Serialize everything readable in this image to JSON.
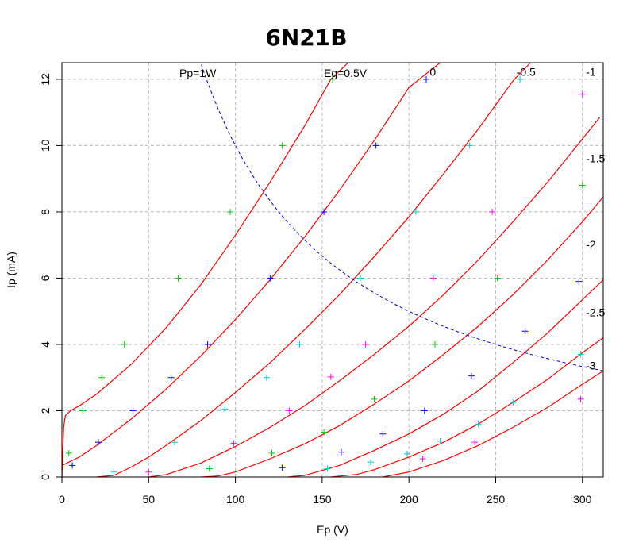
{
  "chart_data": {
    "type": "line",
    "title": "6N21B",
    "xlabel": "Ep (V)",
    "ylabel": "Ip (mA)",
    "xlim": [
      0,
      312
    ],
    "ylim": [
      0,
      12.5
    ],
    "xticks": [
      0,
      50,
      100,
      150,
      200,
      250,
      300
    ],
    "yticks": [
      0,
      2,
      4,
      6,
      8,
      10,
      12
    ],
    "grid": true,
    "annotations": {
      "power_label": "Pp=1W",
      "grid_voltage_label": "Eg=0.5V"
    },
    "power_limit": {
      "watts": 1,
      "color": "#0000cc",
      "style": "dashed"
    },
    "curve_color": "#ff0000",
    "series": [
      {
        "name": "0.5",
        "label": "",
        "color": "#ff0000",
        "x": [
          0,
          1,
          2,
          5,
          10,
          20,
          40,
          60,
          80,
          100,
          120,
          140,
          155,
          165
        ],
        "y": [
          0,
          1.5,
          1.85,
          2.0,
          2.15,
          2.5,
          3.4,
          4.5,
          5.8,
          7.3,
          8.9,
          10.6,
          12.0,
          12.5
        ]
      },
      {
        "name": "0",
        "label": "0",
        "color": "#ff0000",
        "x": [
          0,
          10,
          20,
          40,
          60,
          80,
          100,
          120,
          140,
          160,
          180,
          200,
          218
        ],
        "y": [
          0.35,
          0.6,
          0.95,
          1.75,
          2.65,
          3.65,
          4.75,
          5.95,
          7.25,
          8.65,
          10.15,
          11.75,
          12.5
        ]
      },
      {
        "name": "-0.5",
        "label": "-0.5",
        "color": "#ff0000",
        "x": [
          20,
          30,
          40,
          50,
          60,
          80,
          100,
          120,
          140,
          160,
          180,
          200,
          220,
          240,
          260,
          270
        ],
        "y": [
          0,
          0.05,
          0.3,
          0.6,
          0.95,
          1.7,
          2.55,
          3.45,
          4.45,
          5.5,
          6.65,
          7.85,
          9.15,
          10.5,
          11.95,
          12.5
        ]
      },
      {
        "name": "-1",
        "label": "-1",
        "color": "#ff0000",
        "x": [
          50,
          60,
          80,
          100,
          120,
          140,
          160,
          180,
          200,
          220,
          240,
          260,
          280,
          300,
          310
        ],
        "y": [
          0,
          0.07,
          0.42,
          0.92,
          1.5,
          2.15,
          2.9,
          3.7,
          4.55,
          5.5,
          6.55,
          7.7,
          8.9,
          10.2,
          10.85
        ]
      },
      {
        "name": "-1.5",
        "label": "-1.5",
        "color": "#ff0000",
        "x": [
          80,
          90,
          100,
          120,
          140,
          160,
          180,
          200,
          220,
          240,
          260,
          280,
          300,
          312
        ],
        "y": [
          0,
          0.03,
          0.15,
          0.55,
          1.0,
          1.55,
          2.2,
          2.9,
          3.7,
          4.55,
          5.5,
          6.55,
          7.7,
          8.45
        ]
      },
      {
        "name": "-2",
        "label": "-2",
        "color": "#ff0000",
        "x": [
          130,
          140,
          160,
          180,
          200,
          220,
          240,
          260,
          280,
          300,
          312
        ],
        "y": [
          0,
          0.05,
          0.35,
          0.8,
          1.3,
          1.9,
          2.6,
          3.45,
          4.35,
          5.35,
          5.95
        ]
      },
      {
        "name": "-2.5",
        "label": "-2.5",
        "color": "#ff0000",
        "x": [
          155,
          170,
          180,
          200,
          220,
          240,
          260,
          280,
          300,
          312
        ],
        "y": [
          0,
          0.08,
          0.22,
          0.6,
          1.05,
          1.6,
          2.25,
          2.95,
          3.75,
          4.2
        ]
      },
      {
        "name": "-3",
        "label": "-3",
        "color": "#ff0000",
        "x": [
          185,
          200,
          220,
          240,
          260,
          280,
          300,
          312
        ],
        "y": [
          0,
          0.15,
          0.5,
          0.95,
          1.5,
          2.1,
          2.8,
          3.2
        ]
      }
    ],
    "curve_labels": [
      {
        "text": "0",
        "x": 212,
        "y": 12.1
      },
      {
        "text": "-0.5",
        "x": 262,
        "y": 12.1
      },
      {
        "text": "-1",
        "x": 302,
        "y": 12.1
      },
      {
        "text": "-1.5",
        "x": 302,
        "y": 9.5
      },
      {
        "text": "-2",
        "x": 302,
        "y": 6.9
      },
      {
        "text": "-2.5",
        "x": 302,
        "y": 4.85
      },
      {
        "text": "-3",
        "x": 302,
        "y": 3.25
      }
    ],
    "measured_points": [
      {
        "color": "#00cc00",
        "points": [
          [
            4,
            0.72
          ],
          [
            12,
            2.0
          ],
          [
            23,
            3.0
          ],
          [
            36,
            4.0
          ],
          [
            67,
            6.0
          ],
          [
            97,
            8.0
          ],
          [
            127,
            10.0
          ],
          [
            156,
            12.0
          ],
          [
            85,
            0.25
          ],
          [
            121,
            0.72
          ],
          [
            151,
            1.35
          ],
          [
            180,
            2.35
          ],
          [
            215,
            4.0
          ],
          [
            251,
            6.0
          ],
          [
            300,
            8.8
          ]
        ]
      },
      {
        "color": "#0000ff",
        "points": [
          [
            6,
            0.35
          ],
          [
            21,
            1.05
          ],
          [
            41,
            2.0
          ],
          [
            63,
            3.0
          ],
          [
            84,
            4.0
          ],
          [
            120,
            6.0
          ],
          [
            151,
            8.0
          ],
          [
            181,
            10.0
          ],
          [
            210,
            12.0
          ],
          [
            127,
            0.28
          ],
          [
            161,
            0.75
          ],
          [
            185,
            1.3
          ],
          [
            209,
            2.0
          ],
          [
            236,
            3.05
          ],
          [
            267,
            4.4
          ],
          [
            298,
            5.9
          ]
        ]
      },
      {
        "color": "#00cccc",
        "points": [
          [
            30,
            0.15
          ],
          [
            65,
            1.05
          ],
          [
            94,
            2.05
          ],
          [
            118,
            3.0
          ],
          [
            137,
            4.0
          ],
          [
            172,
            6.0
          ],
          [
            204,
            8.0
          ],
          [
            235,
            10.0
          ],
          [
            264,
            12.0
          ],
          [
            153,
            0.25
          ],
          [
            178,
            0.45
          ],
          [
            199,
            0.7
          ],
          [
            218,
            1.08
          ],
          [
            240,
            1.6
          ],
          [
            260,
            2.25
          ],
          [
            299,
            3.7
          ]
        ]
      },
      {
        "color": "#ff00ff",
        "points": [
          [
            50,
            0.15
          ],
          [
            99,
            1.02
          ],
          [
            131,
            2.0
          ],
          [
            155,
            3.02
          ],
          [
            175,
            4.0
          ],
          [
            214,
            6.0
          ],
          [
            248,
            8.0
          ],
          [
            300,
            11.55
          ],
          [
            208,
            0.55
          ],
          [
            238,
            1.05
          ],
          [
            299,
            2.35
          ]
        ]
      }
    ]
  }
}
